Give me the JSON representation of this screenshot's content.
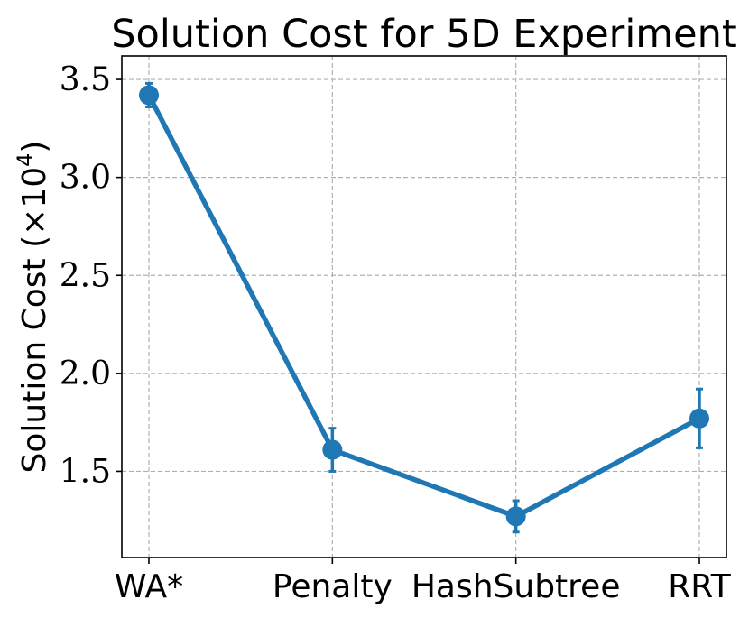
{
  "chart_data": {
    "type": "line",
    "title": "Solution Cost for 5D Experiment",
    "xlabel": "",
    "ylabel": "Solution Cost (×10",
    "ylabel_sup": "4",
    "ylabel_close": ")",
    "categories": [
      "WA*",
      "Penalty",
      "HashSubtree",
      "RRT"
    ],
    "series": [
      {
        "values": [
          3.42,
          1.61,
          1.27,
          1.77
        ],
        "errors": [
          0.06,
          0.11,
          0.08,
          0.15
        ]
      }
    ],
    "yticks": [
      1.5,
      2.0,
      2.5,
      3.0,
      3.5
    ],
    "ytick_labels": [
      "1.5",
      "2.0",
      "2.5",
      "3.0",
      "3.5"
    ],
    "ylim": [
      1.06,
      3.62
    ],
    "grid": true,
    "color": "#1f77b4"
  }
}
